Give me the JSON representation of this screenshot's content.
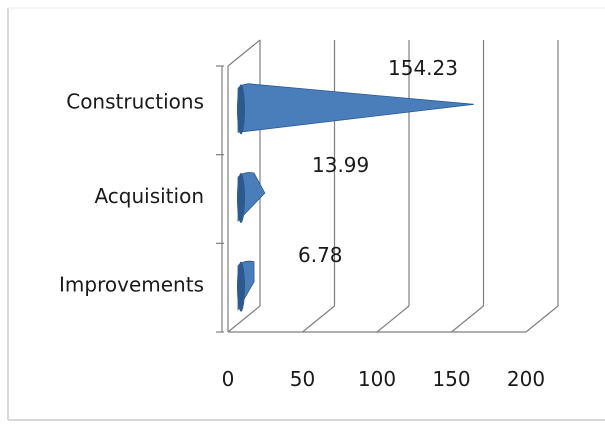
{
  "chart_data": {
    "type": "bar",
    "orientation": "horizontal",
    "style": "3d-cone",
    "categories": [
      "Constructions",
      "Acquisition",
      "Improvements"
    ],
    "values": [
      154.23,
      13.99,
      6.78
    ],
    "data_labels": [
      "154.23",
      "13.99",
      "6.78"
    ],
    "xlim": [
      0,
      200
    ],
    "x_ticks": [
      0,
      50,
      100,
      150,
      200
    ],
    "x_tick_labels": [
      "0",
      "50",
      "100",
      "150",
      "200"
    ],
    "grid": true,
    "legend": "none",
    "colors": {
      "bar": "#4a7ebb",
      "bar_dark": "#2c5a8e",
      "grid": "#7f7f7f",
      "frame": "#d9d9d9"
    }
  }
}
